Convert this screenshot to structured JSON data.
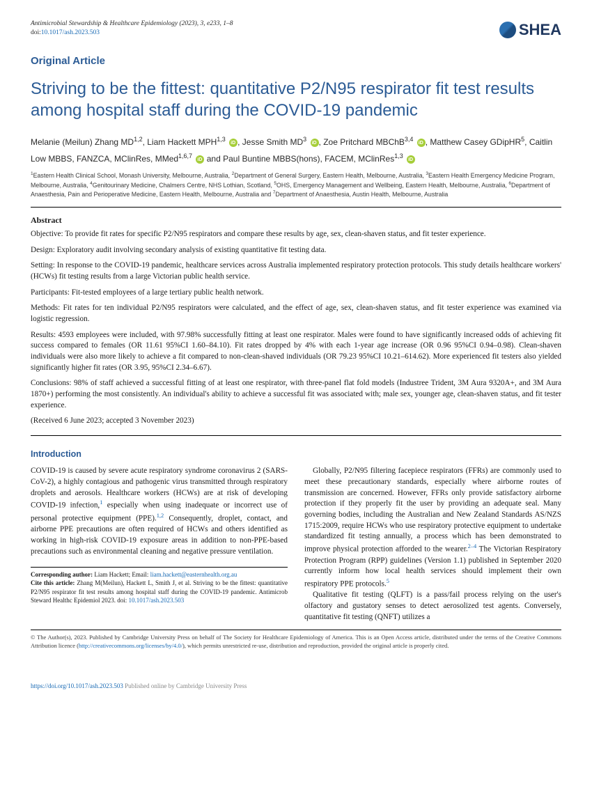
{
  "header": {
    "journal_line": "Antimicrobial Stewardship & Healthcare Epidemiology (2023), 3, e233, 1–8",
    "doi_prefix": "doi:",
    "doi": "10.1017/ash.2023.503",
    "logo_text": "SHEA"
  },
  "article_type": "Original Article",
  "title": "Striving to be the fittest: quantitative P2/N95 respirator fit test results among hospital staff during the COVID-19 pandemic",
  "authors_html": "Melanie (Meilun) Zhang MD<sup>1,2</sup>, Liam Hackett MPH<sup>1,3</sup> <span class='orcid'></span>, Jesse Smith MD<sup>3</sup> <span class='orcid'></span>, Zoe Pritchard MBChB<sup>3,4</sup> <span class='orcid'></span>, Matthew Casey GDipHR<sup>5</sup>, Caitlin Low MBBS, FANZCA, MClinRes, MMed<sup>1,6,7</sup> <span class='orcid'></span> and Paul Buntine MBBS(hons), FACEM, MClinRes<sup>1,3</sup> <span class='orcid'></span>",
  "affiliations": "<sup>1</sup>Eastern Health Clinical School, Monash University, Melbourne, Australia, <sup>2</sup>Department of General Surgery, Eastern Health, Melbourne, Australia, <sup>3</sup>Eastern Health Emergency Medicine Program, Melbourne, Australia, <sup>4</sup>Genitourinary Medicine, Chalmers Centre, NHS Lothian, Scotland, <sup>5</sup>OHS, Emergency Management and Wellbeing, Eastern Health, Melbourne, Australia, <sup>6</sup>Department of Anaesthesia, Pain and Perioperative Medicine, Eastern Health, Melbourne, Australia and <sup>7</sup>Department of Anaesthesia, Austin Health, Melbourne, Australia",
  "abstract": {
    "heading": "Abstract",
    "objective": "Objective: To provide fit rates for specific P2/N95 respirators and compare these results by age, sex, clean-shaven status, and fit tester experience.",
    "design": "Design: Exploratory audit involving secondary analysis of existing quantitative fit testing data.",
    "setting": "Setting: In response to the COVID-19 pandemic, healthcare services across Australia implemented respiratory protection protocols. This study details healthcare workers' (HCWs) fit testing results from a large Victorian public health service.",
    "participants": "Participants: Fit-tested employees of a large tertiary public health network.",
    "methods": "Methods: Fit rates for ten individual P2/N95 respirators were calculated, and the effect of age, sex, clean-shaven status, and fit tester experience was examined via logistic regression.",
    "results": "Results: 4593 employees were included, with 97.98% successfully fitting at least one respirator. Males were found to have significantly increased odds of achieving fit success compared to females (OR 11.61 95%CI 1.60–84.10). Fit rates dropped by 4% with each 1-year age increase (OR 0.96 95%CI 0.94–0.98). Clean-shaven individuals were also more likely to achieve a fit compared to non-clean-shaved individuals (OR 79.23 95%CI 10.21–614.62). More experienced fit testers also yielded significantly higher fit rates (OR 3.95, 95%CI 2.34–6.67).",
    "conclusions": "Conclusions: 98% of staff achieved a successful fitting of at least one respirator, with three-panel flat fold models (Industree Trident, 3M Aura 9320A+, and 3M Aura 1870+) performing the most consistently. An individual's ability to achieve a successful fit was associated with; male sex, younger age, clean-shaven status, and fit tester experience.",
    "received": "(Received 6 June 2023; accepted 3 November 2023)"
  },
  "introduction": {
    "heading": "Introduction",
    "p1": "COVID-19 is caused by severe acute respiratory syndrome coronavirus 2 (SARS-CoV-2), a highly contagious and pathogenic virus transmitted through respiratory droplets and aerosols. Healthcare workers (HCWs) are at risk of developing COVID-19 infection,",
    "ref1": "1",
    "p1b": " especially when using inadequate or incorrect use of personal protective equipment (PPE).",
    "ref12": "1,2",
    "p1c": " Consequently, droplet, contact, and airborne PPE precautions are often required of HCWs and others identified as working in high-risk COVID-19 exposure areas in addition to non-PPE-based precautions such as environmental cleaning and negative pressure ventilation.",
    "p2": "Globally, P2/N95 filtering facepiece respirators (FFRs) are commonly used to meet these precautionary standards, especially where airborne routes of transmission are concerned. However, FFRs only provide satisfactory airborne protection if they properly fit the user by providing an adequate seal. Many governing bodies, including the Australian and New Zealand Standards AS/NZS 1715:2009, require HCWs who use respiratory protective equipment to undertake standardized fit testing annually, a process which has been demonstrated to improve physical protection afforded to the wearer.",
    "ref24": "2–4",
    "p2b": " The Victorian Respiratory Protection Program (RPP) guidelines (Version 1.1) published in September 2020 currently inform how local health services should implement their own respiratory PPE protocols.",
    "ref5": "5",
    "p3": "Qualitative fit testing (QLFT) is a pass/fail process relying on the user's olfactory and gustatory senses to detect aerosolized test agents. Conversely, quantitative fit testing (QNFT) utilizes a"
  },
  "corresponding": {
    "label": "Corresponding author:",
    "name": " Liam Hackett; Email: ",
    "email": "liam.hackett@easternhealth.org.au",
    "cite_label": "Cite this article:",
    "cite_text": " Zhang M(Meilun), Hackett L, Smith J, et al. Striving to be the fittest: quantitative P2/N95 respirator fit test results among hospital staff during the COVID-19 pandemic. Antimicrob Steward Healthc Epidemiol 2023. doi: ",
    "cite_doi": "10.1017/ash.2023.503"
  },
  "copyright": {
    "text": "© The Author(s), 2023. Published by Cambridge University Press on behalf of The Society for Healthcare Epidemiology of America. This is an Open Access article, distributed under the terms of the Creative Commons Attribution licence (",
    "cc_url": "http://creativecommons.org/licenses/by/4.0/",
    "text2": "), which permits unrestricted re-use, distribution and reproduction, provided the original article is properly cited."
  },
  "footer": {
    "url": "https://doi.org/10.1017/ash.2023.503",
    "suffix": " Published online by Cambridge University Press"
  },
  "colors": {
    "heading_blue": "#2b5b95",
    "link_blue": "#1668b3",
    "orcid_green": "#a6ce39",
    "text": "#1a1a1a"
  }
}
